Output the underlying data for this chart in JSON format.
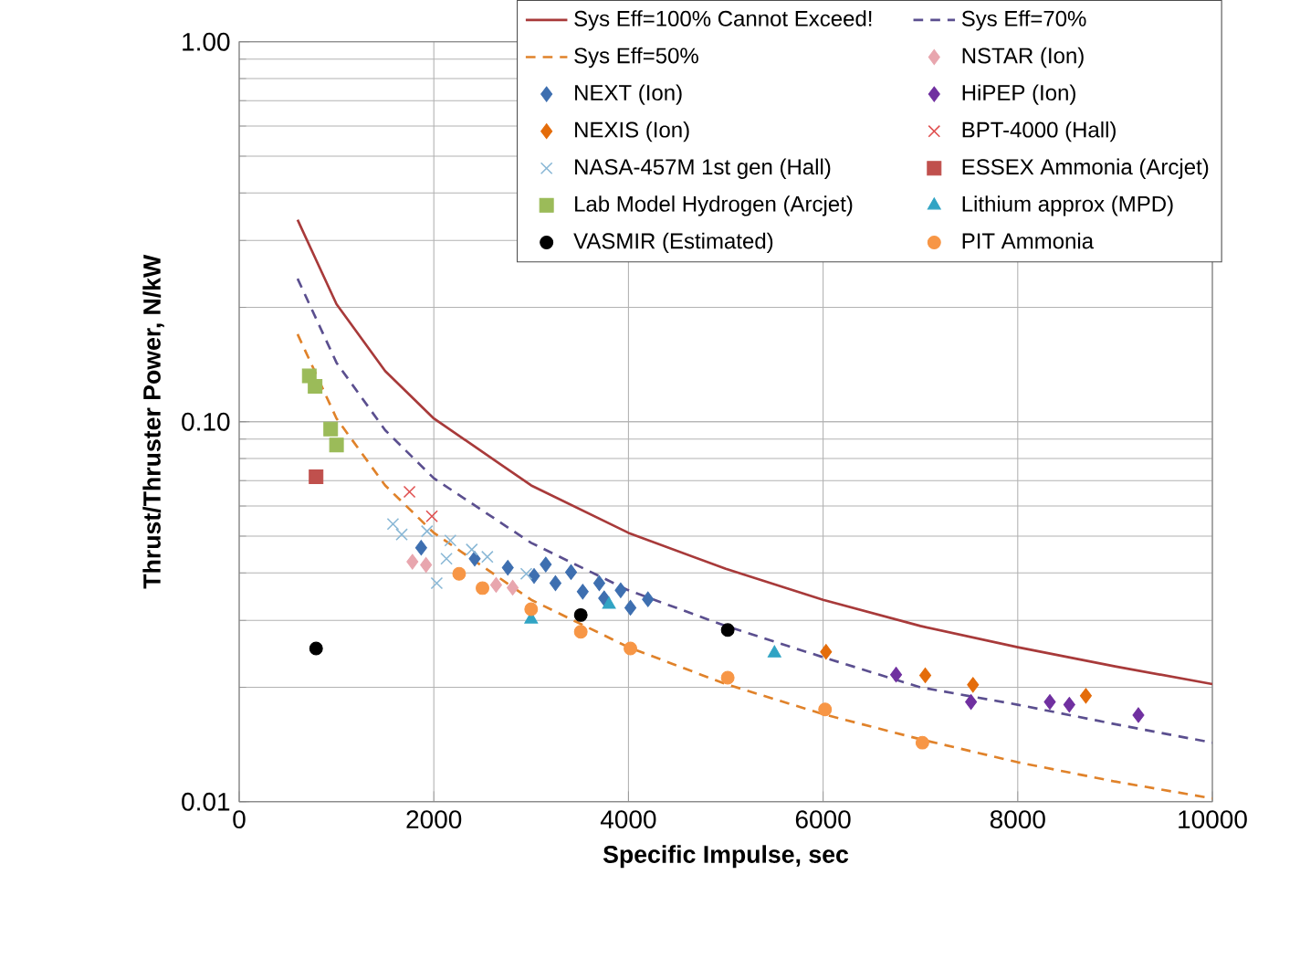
{
  "chart_data": {
    "type": "scatter",
    "xlabel": "Specific Impulse, sec",
    "ylabel": "Thrust/Thruster Power, N/kW",
    "log": "y",
    "xlim": [
      0,
      10000
    ],
    "ylim": [
      0.01,
      1
    ],
    "xticks": [
      0,
      2000,
      4000,
      6000,
      8000,
      10000
    ],
    "yticks": [
      {
        "value": 0.01,
        "label": "0.01"
      },
      {
        "value": 0.1,
        "label": "0.10"
      },
      {
        "value": 1,
        "label": "1.00"
      }
    ],
    "grid": true,
    "legend": "top right",
    "series": [
      {
        "name": "Sys Eff=100% Cannot Exceed!",
        "type": "line",
        "line_style": "solid",
        "marker": "none",
        "color": "#a83a3a",
        "x": [
          600,
          1000,
          1500,
          2000,
          3000,
          4000,
          5000,
          6000,
          7000,
          8000,
          9000,
          10000
        ],
        "values": [
          0.34,
          0.204,
          0.136,
          0.102,
          0.068,
          0.051,
          0.041,
          0.034,
          0.029,
          0.0255,
          0.0227,
          0.0204
        ]
      },
      {
        "name": "Sys Eff=70%",
        "type": "line",
        "line_style": "dashed",
        "marker": "none",
        "color": "#5b4f8f",
        "x": [
          600,
          1000,
          1500,
          2000,
          3000,
          4000,
          5000,
          6000,
          7000,
          8000,
          9000,
          10000
        ],
        "values": [
          0.238,
          0.143,
          0.095,
          0.071,
          0.048,
          0.036,
          0.029,
          0.024,
          0.02,
          0.018,
          0.016,
          0.0143
        ]
      },
      {
        "name": "Sys Eff=50%",
        "type": "line",
        "line_style": "dashed",
        "marker": "none",
        "color": "#e0822a",
        "x": [
          600,
          1000,
          1500,
          2000,
          3000,
          4000,
          5000,
          6000,
          7000,
          8000,
          9000,
          10000
        ],
        "values": [
          0.17,
          0.102,
          0.068,
          0.051,
          0.034,
          0.0255,
          0.0204,
          0.017,
          0.0146,
          0.0127,
          0.0113,
          0.0102
        ]
      },
      {
        "name": "NSTAR (Ion)",
        "marker": "diamond",
        "color": "#e8a6ae",
        "x": [
          1780,
          1920,
          2640,
          2810
        ],
        "values": [
          0.0428,
          0.042,
          0.0372,
          0.0366
        ]
      },
      {
        "name": "NEXT (Ion)",
        "marker": "diamond",
        "color": "#3e6fb0",
        "x": [
          1870,
          2420,
          2760,
          3030,
          3150,
          3250,
          3410,
          3530,
          3700,
          3750,
          3920,
          4020,
          4200
        ],
        "values": [
          0.0466,
          0.0436,
          0.0413,
          0.0393,
          0.0421,
          0.0376,
          0.0402,
          0.0357,
          0.0376,
          0.0343,
          0.036,
          0.0324,
          0.0341
        ]
      },
      {
        "name": "HiPEP (Ion)",
        "marker": "diamond",
        "color": "#7030a0",
        "x": [
          6750,
          7520,
          8330,
          8530,
          9240
        ],
        "values": [
          0.0216,
          0.0183,
          0.0183,
          0.018,
          0.0169
        ]
      },
      {
        "name": "NEXIS (Ion)",
        "marker": "diamond",
        "color": "#e46c0a",
        "x": [
          6030,
          7050,
          7540,
          8700
        ],
        "values": [
          0.0248,
          0.0215,
          0.0203,
          0.019
        ]
      },
      {
        "name": "BPT-4000 (Hall)",
        "marker": "cross",
        "color": "#e05050",
        "x": [
          1750,
          1980
        ],
        "values": [
          0.0654,
          0.0564
        ]
      },
      {
        "name": "NASA-457M 1st gen (Hall)",
        "marker": "cross",
        "color": "#8ab8d6",
        "x": [
          1580,
          1670,
          1930,
          2170,
          2130,
          2030,
          2390,
          2550,
          2950
        ],
        "values": [
          0.0538,
          0.0505,
          0.0515,
          0.0487,
          0.0436,
          0.0376,
          0.0461,
          0.0441,
          0.0398
        ]
      },
      {
        "name": "ESSEX Ammonia (Arcjet)",
        "marker": "square",
        "color": "#c0504d",
        "x": [
          790
        ],
        "values": [
          0.0717
        ]
      },
      {
        "name": "Lab Model Hydrogen (Arcjet)",
        "marker": "square",
        "color": "#9bbb59",
        "x": [
          720,
          780,
          940,
          1000
        ],
        "values": [
          0.132,
          0.124,
          0.0957,
          0.0869
        ]
      },
      {
        "name": "Lithium approx (MPD)",
        "marker": "triangle",
        "color": "#31a4c4",
        "x": [
          3000,
          3800,
          5500
        ],
        "values": [
          0.0302,
          0.033,
          0.0246
        ]
      },
      {
        "name": "VASMIR (Estimated)",
        "marker": "circle",
        "color": "#000000",
        "x": [
          790,
          3510,
          5020
        ],
        "values": [
          0.0253,
          0.031,
          0.0283
        ]
      },
      {
        "name": "PIT Ammonia",
        "marker": "circle",
        "color": "#f79646",
        "x": [
          2260,
          2500,
          3000,
          3510,
          4020,
          5020,
          6020,
          7020
        ],
        "values": [
          0.0398,
          0.0365,
          0.0321,
          0.028,
          0.0253,
          0.0212,
          0.0175,
          0.0143
        ]
      }
    ]
  }
}
